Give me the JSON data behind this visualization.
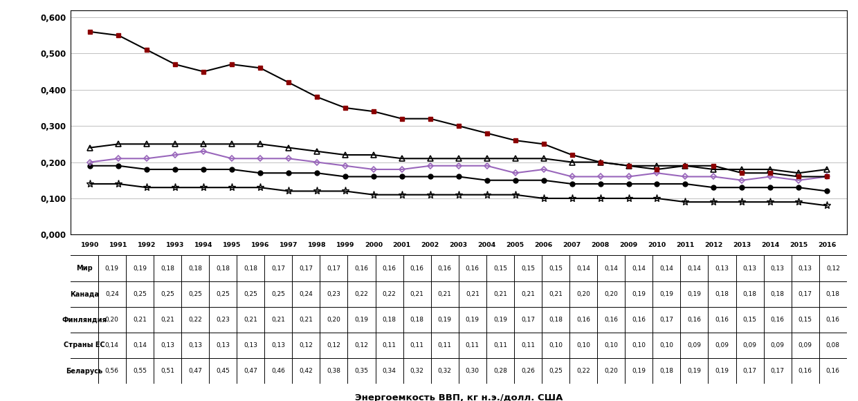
{
  "years": [
    1990,
    1991,
    1992,
    1993,
    1994,
    1995,
    1996,
    1997,
    1998,
    1999,
    2000,
    2001,
    2002,
    2003,
    2004,
    2005,
    2006,
    2007,
    2008,
    2009,
    2010,
    2011,
    2012,
    2013,
    2014,
    2015,
    2016
  ],
  "mir": [
    0.19,
    0.19,
    0.18,
    0.18,
    0.18,
    0.18,
    0.17,
    0.17,
    0.17,
    0.16,
    0.16,
    0.16,
    0.16,
    0.16,
    0.15,
    0.15,
    0.15,
    0.14,
    0.14,
    0.14,
    0.14,
    0.14,
    0.13,
    0.13,
    0.13,
    0.13,
    0.12
  ],
  "kanada": [
    0.24,
    0.25,
    0.25,
    0.25,
    0.25,
    0.25,
    0.25,
    0.24,
    0.23,
    0.22,
    0.22,
    0.21,
    0.21,
    0.21,
    0.21,
    0.21,
    0.21,
    0.2,
    0.2,
    0.19,
    0.19,
    0.19,
    0.18,
    0.18,
    0.18,
    0.17,
    0.18
  ],
  "finlyandiya": [
    0.2,
    0.21,
    0.21,
    0.22,
    0.23,
    0.21,
    0.21,
    0.21,
    0.2,
    0.19,
    0.18,
    0.18,
    0.19,
    0.19,
    0.19,
    0.17,
    0.18,
    0.16,
    0.16,
    0.16,
    0.17,
    0.16,
    0.16,
    0.15,
    0.16,
    0.15,
    0.16
  ],
  "strany_es": [
    0.14,
    0.14,
    0.13,
    0.13,
    0.13,
    0.13,
    0.13,
    0.12,
    0.12,
    0.12,
    0.11,
    0.11,
    0.11,
    0.11,
    0.11,
    0.11,
    0.1,
    0.1,
    0.1,
    0.1,
    0.1,
    0.09,
    0.09,
    0.09,
    0.09,
    0.09,
    0.08
  ],
  "belarus": [
    0.56,
    0.55,
    0.51,
    0.47,
    0.45,
    0.47,
    0.46,
    0.42,
    0.38,
    0.35,
    0.34,
    0.32,
    0.32,
    0.3,
    0.28,
    0.26,
    0.25,
    0.22,
    0.2,
    0.19,
    0.18,
    0.19,
    0.19,
    0.17,
    0.17,
    0.16,
    0.16
  ],
  "ylim": [
    0.0,
    0.62
  ],
  "yticks": [
    0.0,
    0.1,
    0.2,
    0.3,
    0.4,
    0.5,
    0.6
  ],
  "ytick_labels": [
    "0,000",
    "0,100",
    "0,200",
    "0,300",
    "0,400",
    "0,500",
    "0,600"
  ],
  "color_mir": "#000000",
  "color_kanada": "#000000",
  "color_finlyandiya": "#9966bb",
  "color_es": "#000000",
  "color_belarus": "#000000",
  "marker_belarus_face": "#8b0000",
  "legend_label": "Энергоемкость ВВП, кг н.э./долл. США",
  "series_labels": [
    "Мир",
    "Канада",
    "Финляндия",
    "Страны ЕС",
    "Беларусь"
  ],
  "row_labels": [
    "Мир",
    "Канада",
    "Финляндия",
    "Страны ЕС",
    "Беларусь"
  ]
}
